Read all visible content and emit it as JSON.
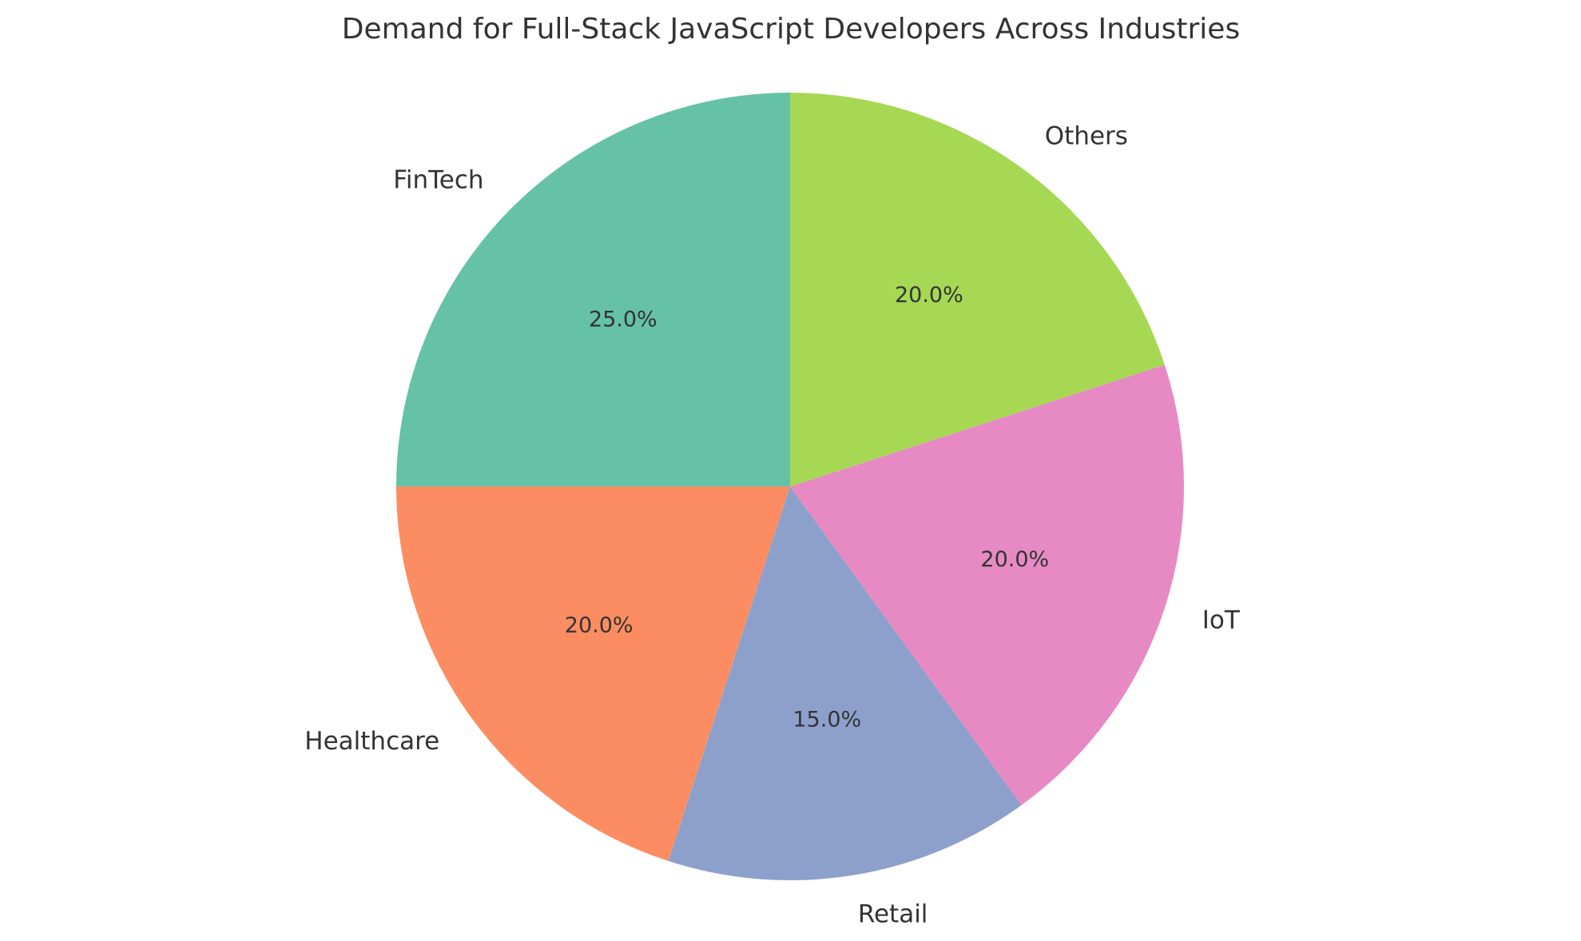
{
  "chart_data": {
    "type": "pie",
    "title": "Demand for Full-Stack JavaScript Developers Across Industries",
    "start_angle_deg": 90,
    "direction": "counterclockwise",
    "slices": [
      {
        "label": "FinTech",
        "value": 25,
        "pct_label": "25.0%",
        "color": "#66c2a5"
      },
      {
        "label": "Healthcare",
        "value": 20,
        "pct_label": "20.0%",
        "color": "#fc8d62"
      },
      {
        "label": "Retail",
        "value": 15,
        "pct_label": "15.0%",
        "color": "#8da0cb"
      },
      {
        "label": "IoT",
        "value": 20,
        "pct_label": "20.0%",
        "color": "#e78ac3"
      },
      {
        "label": "Others",
        "value": 20,
        "pct_label": "20.0%",
        "color": "#a6d854"
      }
    ]
  }
}
